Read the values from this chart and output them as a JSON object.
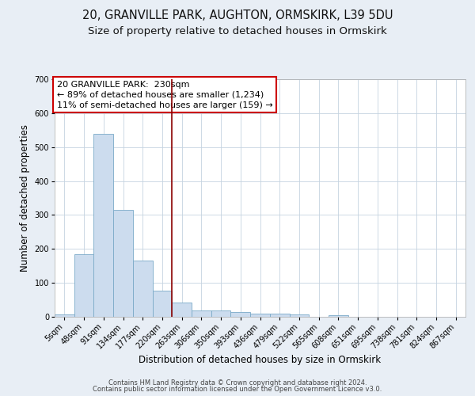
{
  "title1": "20, GRANVILLE PARK, AUGHTON, ORMSKIRK, L39 5DU",
  "title2": "Size of property relative to detached houses in Ormskirk",
  "xlabel": "Distribution of detached houses by size in Ormskirk",
  "ylabel": "Number of detached properties",
  "categories": [
    "5sqm",
    "48sqm",
    "91sqm",
    "134sqm",
    "177sqm",
    "220sqm",
    "263sqm",
    "306sqm",
    "350sqm",
    "393sqm",
    "436sqm",
    "479sqm",
    "522sqm",
    "565sqm",
    "608sqm",
    "651sqm",
    "695sqm",
    "738sqm",
    "781sqm",
    "824sqm",
    "867sqm"
  ],
  "values": [
    8,
    185,
    540,
    315,
    165,
    78,
    43,
    18,
    18,
    15,
    10,
    10,
    8,
    0,
    5,
    0,
    0,
    0,
    0,
    0,
    0
  ],
  "bar_color": "#ccdcee",
  "bar_edge_color": "#7aaac8",
  "vline_x_index": 5.5,
  "vline_color": "#8b0000",
  "annotation_text": "20 GRANVILLE PARK:  230sqm\n← 89% of detached houses are smaller (1,234)\n11% of semi-detached houses are larger (159) →",
  "annotation_box_color": "#ffffff",
  "annotation_box_edge": "#cc0000",
  "ylim": [
    0,
    700
  ],
  "yticks": [
    0,
    100,
    200,
    300,
    400,
    500,
    600,
    700
  ],
  "background_color": "#e8eef5",
  "plot_background": "#ffffff",
  "footer1": "Contains HM Land Registry data © Crown copyright and database right 2024.",
  "footer2": "Contains public sector information licensed under the Open Government Licence v3.0.",
  "title1_fontsize": 10.5,
  "title2_fontsize": 9.5,
  "tick_fontsize": 7.0,
  "ylabel_fontsize": 8.5,
  "xlabel_fontsize": 8.5,
  "footer_fontsize": 6.0,
  "annotation_fontsize": 8.0
}
